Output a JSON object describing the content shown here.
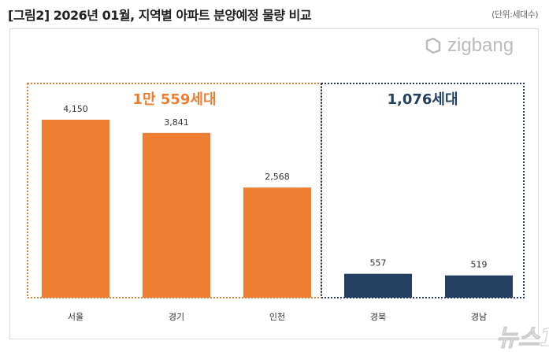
{
  "title": "[그림2] 2026년 01월, 지역별 아파트 분양예정 물량 비교",
  "unit": "(단위:세대수)",
  "logo": "zigbang",
  "watermark": "뉴스1",
  "colors": {
    "orange": "#ED7D31",
    "navy": "#243F60"
  },
  "chart_data": {
    "type": "bar",
    "title": "[그림2] 2026년 01월, 지역별 아파트 분양예정 물량 비교",
    "categories": [
      "서울",
      "경기",
      "인천",
      "경북",
      "경남"
    ],
    "values": [
      4150,
      3841,
      2568,
      557,
      519
    ],
    "value_labels": [
      "4,150",
      "3,841",
      "2,568",
      "557",
      "519"
    ],
    "bar_colors": [
      "#ED7D31",
      "#ED7D31",
      "#ED7D31",
      "#243F60",
      "#243F60"
    ],
    "groups": [
      {
        "label": "1만 559세대",
        "categories": [
          "서울",
          "경기",
          "인천"
        ],
        "color": "#ED7D31"
      },
      {
        "label": "1,076세대",
        "categories": [
          "경북",
          "경남"
        ],
        "color": "#243F60"
      }
    ],
    "ylim": [
      0,
      4800
    ],
    "grid": false,
    "legend": "none"
  }
}
